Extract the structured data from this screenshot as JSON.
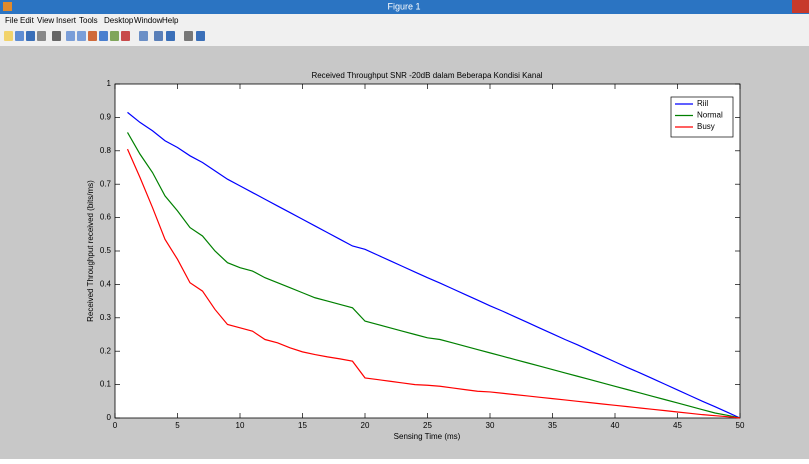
{
  "window": {
    "title": "Figure 1",
    "menu": [
      "File",
      "Edit",
      "View",
      "Insert",
      "Tools",
      "Desktop",
      "Window",
      "Help"
    ]
  },
  "chart_data": {
    "type": "line",
    "title": "Received Throughput SNR -20dB dalam Beberapa Kondisi Kanal",
    "xlabel": "Sensing Time (ms)",
    "ylabel": "Received Throughput received (bits/ms)",
    "x": [
      1,
      2,
      3,
      4,
      5,
      6,
      7,
      8,
      9,
      10,
      11,
      12,
      13,
      14,
      15,
      16,
      17,
      18,
      19,
      20,
      21,
      22,
      23,
      24,
      25,
      26,
      27,
      28,
      29,
      30,
      31,
      32,
      33,
      34,
      35,
      36,
      37,
      38,
      39,
      40,
      41,
      42,
      43,
      44,
      45,
      46,
      47,
      48,
      49,
      50
    ],
    "series": [
      {
        "name": "Riil",
        "color": "#0000ff",
        "values": [
          0.915,
          0.885,
          0.86,
          0.83,
          0.81,
          0.785,
          0.765,
          0.74,
          0.715,
          0.695,
          0.675,
          0.655,
          0.635,
          0.615,
          0.595,
          0.575,
          0.555,
          0.535,
          0.515,
          0.505,
          0.488,
          0.471,
          0.454,
          0.437,
          0.42,
          0.404,
          0.387,
          0.37,
          0.353,
          0.336,
          0.32,
          0.303,
          0.286,
          0.269,
          0.252,
          0.235,
          0.219,
          0.202,
          0.185,
          0.168,
          0.151,
          0.135,
          0.118,
          0.101,
          0.084,
          0.067,
          0.05,
          0.034,
          0.017,
          0
        ]
      },
      {
        "name": "Normal",
        "color": "#008000",
        "values": [
          0.855,
          0.79,
          0.735,
          0.665,
          0.62,
          0.57,
          0.545,
          0.5,
          0.465,
          0.45,
          0.44,
          0.42,
          0.405,
          0.39,
          0.375,
          0.36,
          0.35,
          0.34,
          0.33,
          0.29,
          0.28,
          0.27,
          0.26,
          0.25,
          0.24,
          0.235,
          0.225,
          0.215,
          0.205,
          0.195,
          0.185,
          0.175,
          0.165,
          0.155,
          0.145,
          0.135,
          0.125,
          0.115,
          0.105,
          0.095,
          0.085,
          0.075,
          0.065,
          0.055,
          0.045,
          0.035,
          0.025,
          0.015,
          0.008,
          0
        ]
      },
      {
        "name": "Busy",
        "color": "#ff0000",
        "values": [
          0.805,
          0.72,
          0.63,
          0.535,
          0.475,
          0.405,
          0.38,
          0.325,
          0.28,
          0.27,
          0.26,
          0.235,
          0.225,
          0.21,
          0.198,
          0.19,
          0.183,
          0.177,
          0.17,
          0.12,
          0.115,
          0.11,
          0.105,
          0.1,
          0.098,
          0.095,
          0.09,
          0.085,
          0.08,
          0.078,
          0.074,
          0.07,
          0.066,
          0.062,
          0.058,
          0.054,
          0.05,
          0.046,
          0.042,
          0.038,
          0.034,
          0.03,
          0.026,
          0.022,
          0.018,
          0.014,
          0.01,
          0.007,
          0.004,
          0
        ]
      }
    ],
    "xlim": [
      0,
      50
    ],
    "xticks": [
      0,
      5,
      10,
      15,
      20,
      25,
      30,
      35,
      40,
      45,
      50
    ],
    "ylim": [
      0,
      1
    ],
    "yticks": [
      0,
      0.1,
      0.2,
      0.3,
      0.4,
      0.5,
      0.6,
      0.7,
      0.8,
      0.9,
      1
    ],
    "grid": false,
    "legend": "top-right"
  }
}
